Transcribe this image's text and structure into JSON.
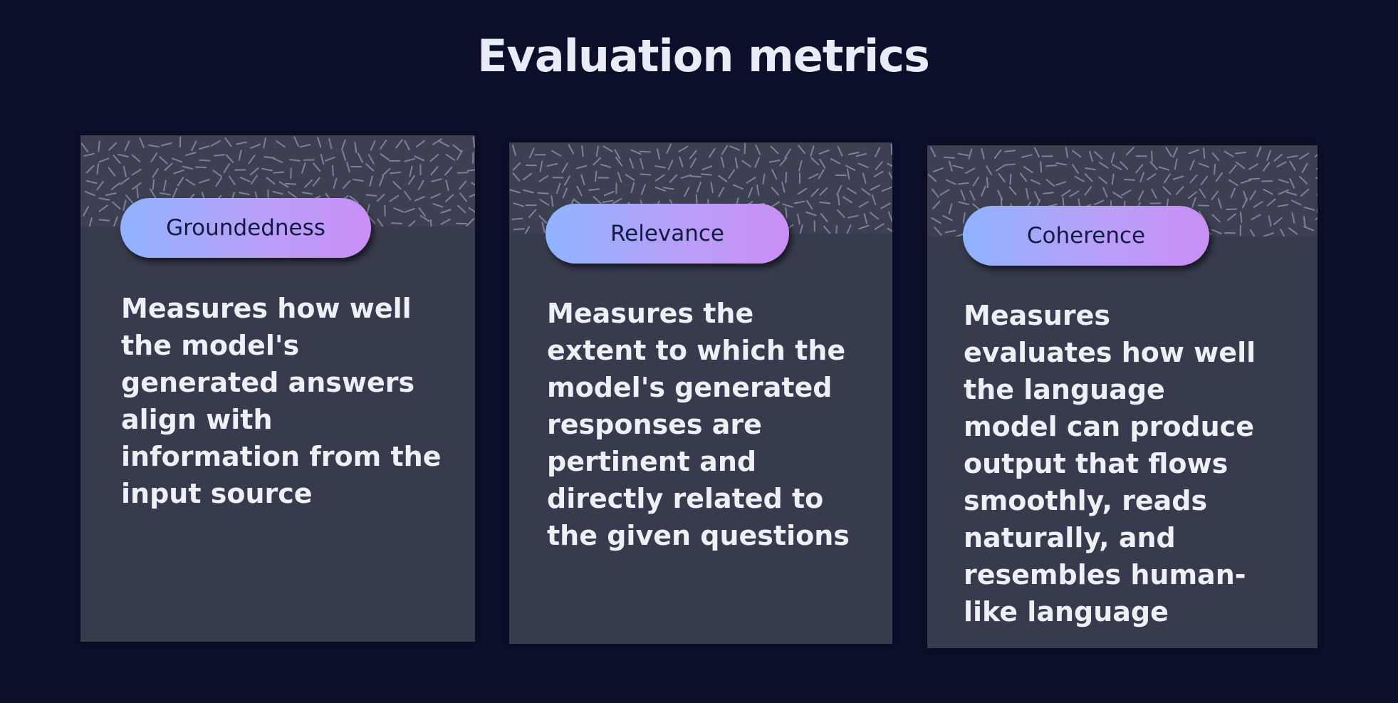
{
  "title": "Evaluation metrics",
  "cards": [
    {
      "label": "Groundedness",
      "description": "Measures how well\nthe model's\ngenerated answers\nalign with\ninformation from the\ninput source"
    },
    {
      "label": "Relevance",
      "description": "Measures the\nextent to which the\nmodel's generated\nresponses are\npertinent and\ndirectly related to\nthe given questions"
    },
    {
      "label": "Coherence",
      "description": "Measures\nevaluates how well\nthe language\nmodel can produce\noutput that flows\nsmoothly, reads\nnaturally, and\nresembles human-\nlike language"
    }
  ],
  "colors": {
    "background": "#0a1029",
    "card": "#363b4d",
    "pill_start": "#8fb3ff",
    "pill_end": "#c98ef5"
  }
}
